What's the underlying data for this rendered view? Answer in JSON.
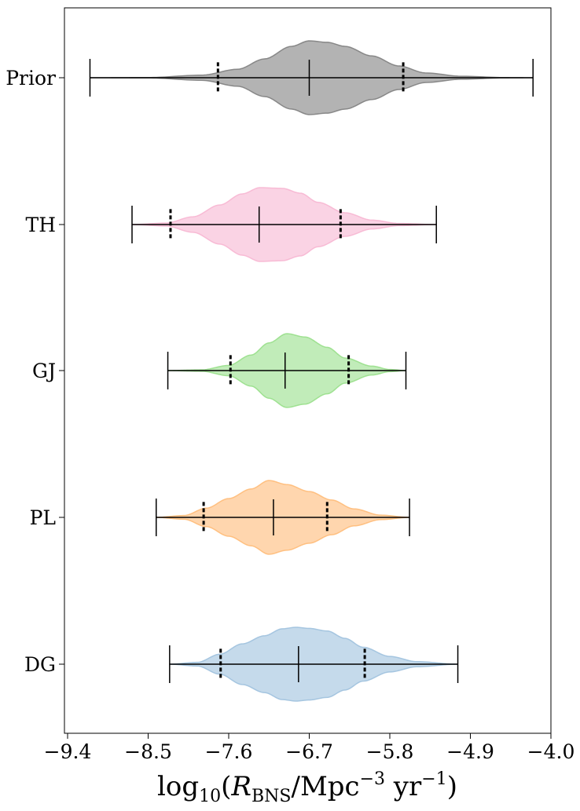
{
  "chart_data": {
    "type": "violin",
    "orientation": "horizontal",
    "xlim": [
      -9.4,
      -4.0
    ],
    "x_ticks": [
      -9.4,
      -8.5,
      -7.6,
      -6.7,
      -5.8,
      -4.9,
      -4.0
    ],
    "x_tick_labels": [
      "−9.4",
      "−8.5",
      "−7.6",
      "−6.7",
      "−5.8",
      "−4.9",
      "−4.0"
    ],
    "xlabel": {
      "prefix": "log",
      "prefix_sub": "10",
      "open": "(",
      "var": "R",
      "var_sub": "BNS",
      "mid": "/Mpc",
      "mid_sup": "−3",
      "unit2": " yr",
      "unit2_sup": "−1",
      "close": ")"
    },
    "categories": [
      "Prior",
      "TH",
      "GJ",
      "PL",
      "DG"
    ],
    "series": [
      {
        "name": "Prior",
        "color": "#808080",
        "min": -9.15,
        "max": -4.2,
        "median": -6.7,
        "q_low": -7.72,
        "q_high": -5.65,
        "density": [
          [
            -9.15,
            0.0
          ],
          [
            -8.5,
            0.005
          ],
          [
            -7.9,
            0.07
          ],
          [
            -7.5,
            0.23
          ],
          [
            -7.2,
            0.51
          ],
          [
            -6.9,
            0.85
          ],
          [
            -6.7,
            1.0
          ],
          [
            -6.5,
            0.96
          ],
          [
            -6.3,
            0.85
          ],
          [
            -6.0,
            0.59
          ],
          [
            -5.7,
            0.32
          ],
          [
            -5.4,
            0.13
          ],
          [
            -5.0,
            0.04
          ],
          [
            -4.5,
            0.004
          ],
          [
            -4.2,
            0.0
          ]
        ]
      },
      {
        "name": "TH",
        "color": "#f7b6d2",
        "min": -8.68,
        "max": -5.28,
        "median": -7.26,
        "q_low": -8.25,
        "q_high": -6.35,
        "density": [
          [
            -8.68,
            0.0
          ],
          [
            -8.3,
            0.04
          ],
          [
            -8.0,
            0.21
          ],
          [
            -7.7,
            0.53
          ],
          [
            -7.45,
            0.83
          ],
          [
            -7.25,
            1.0
          ],
          [
            -7.0,
            0.98
          ],
          [
            -6.8,
            0.85
          ],
          [
            -6.6,
            0.6
          ],
          [
            -6.3,
            0.32
          ],
          [
            -6.0,
            0.12
          ],
          [
            -5.7,
            0.03
          ],
          [
            -5.28,
            0.0
          ]
        ]
      },
      {
        "name": "GJ",
        "color": "#98df8a",
        "min": -8.28,
        "max": -5.62,
        "median": -6.97,
        "q_low": -7.58,
        "q_high": -6.26,
        "density": [
          [
            -8.28,
            0.0
          ],
          [
            -7.9,
            0.02
          ],
          [
            -7.6,
            0.14
          ],
          [
            -7.35,
            0.42
          ],
          [
            -7.15,
            0.75
          ],
          [
            -6.95,
            1.0
          ],
          [
            -6.75,
            0.91
          ],
          [
            -6.5,
            0.63
          ],
          [
            -6.3,
            0.34
          ],
          [
            -6.0,
            0.12
          ],
          [
            -5.8,
            0.03
          ],
          [
            -5.62,
            0.0
          ]
        ]
      },
      {
        "name": "PL",
        "color": "#ffbb78",
        "min": -8.41,
        "max": -5.58,
        "median": -7.1,
        "q_low": -7.88,
        "q_high": -6.5,
        "density": [
          [
            -8.41,
            0.0
          ],
          [
            -8.1,
            0.05
          ],
          [
            -7.85,
            0.25
          ],
          [
            -7.6,
            0.51
          ],
          [
            -7.35,
            0.77
          ],
          [
            -7.15,
            1.0
          ],
          [
            -6.95,
            0.89
          ],
          [
            -6.7,
            0.7
          ],
          [
            -6.45,
            0.47
          ],
          [
            -6.2,
            0.23
          ],
          [
            -5.9,
            0.06
          ],
          [
            -5.58,
            0.0
          ]
        ]
      },
      {
        "name": "DG",
        "color": "#9ec1de",
        "min": -8.26,
        "max": -5.04,
        "median": -6.82,
        "q_low": -7.69,
        "q_high": -6.08,
        "density": [
          [
            -8.26,
            0.0
          ],
          [
            -7.95,
            0.05
          ],
          [
            -7.7,
            0.27
          ],
          [
            -7.45,
            0.55
          ],
          [
            -7.2,
            0.77
          ],
          [
            -7.0,
            0.96
          ],
          [
            -6.85,
            1.0
          ],
          [
            -6.7,
            0.97
          ],
          [
            -6.5,
            0.9
          ],
          [
            -6.3,
            0.7
          ],
          [
            -6.1,
            0.46
          ],
          [
            -5.8,
            0.21
          ],
          [
            -5.5,
            0.07
          ],
          [
            -5.04,
            0.0
          ]
        ]
      }
    ]
  }
}
